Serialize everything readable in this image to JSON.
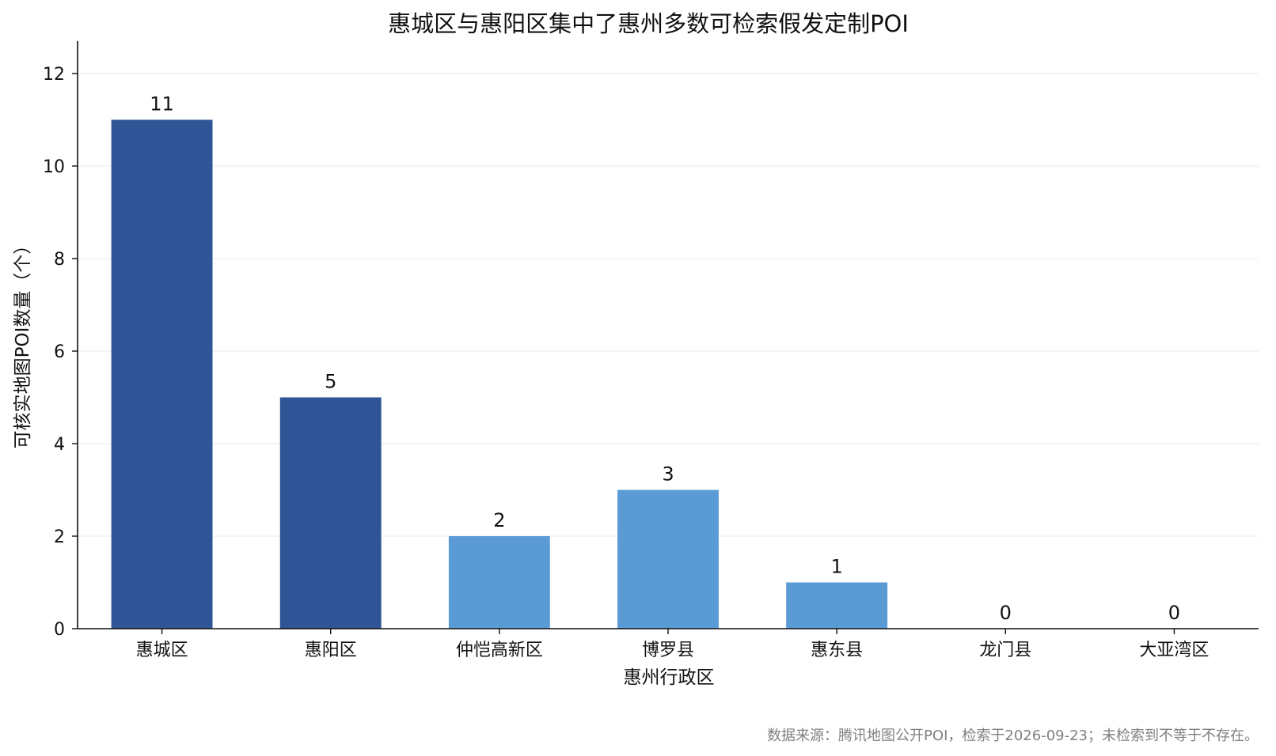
{
  "chart_data": {
    "type": "bar",
    "title": "惠城区与惠阳区集中了惠州多数可检索假发定制POI",
    "xlabel": "惠州行政区",
    "ylabel": "可核实地图POI数量（个）",
    "categories": [
      "惠城区",
      "惠阳区",
      "仲恺高新区",
      "博罗县",
      "惠东县",
      "龙门县",
      "大亚湾区"
    ],
    "values": [
      11,
      5,
      2,
      3,
      1,
      0,
      0
    ],
    "bar_colors": [
      "#2f5597",
      "#2f5597",
      "#5b9bd5",
      "#5b9bd5",
      "#5b9bd5",
      "#5b9bd5",
      "#5b9bd5"
    ],
    "ylim": [
      0,
      12.7
    ],
    "yticks": [
      0,
      2,
      4,
      6,
      8,
      10,
      12
    ],
    "grid": true,
    "data_labels": true,
    "source_note": "数据来源：腾讯地图公开POI，检索于2026-09-23；未检索到不等于不存在。"
  }
}
